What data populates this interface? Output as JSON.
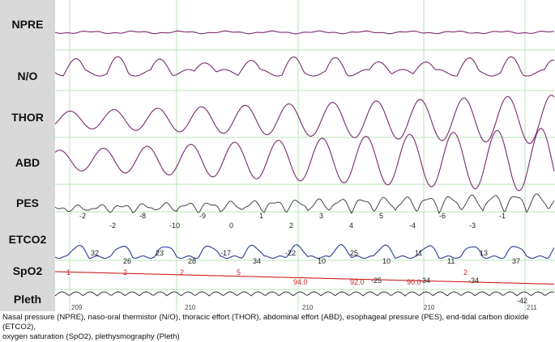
{
  "channels": [
    {
      "label": "NPRE"
    },
    {
      "label": "N/O"
    },
    {
      "label": "THOR"
    },
    {
      "label": "ABD"
    },
    {
      "label": "PES"
    },
    {
      "label": "ETCO2"
    },
    {
      "label": "SpO2"
    },
    {
      "label": "Pleth"
    }
  ],
  "pes_values": [
    "-2",
    "-2",
    "-8",
    "-10",
    "-9",
    "0",
    "1",
    "2",
    "3",
    "4",
    "5",
    "-4",
    "-6",
    "-3",
    "-1"
  ],
  "etco2_values": [
    "32",
    "26",
    "23",
    "28",
    "-17",
    "34",
    "-22",
    "10",
    "25",
    "10",
    "11",
    "11",
    "13",
    "37"
  ],
  "pes_lower_values": [
    "-25",
    "-34",
    "-34",
    "-42"
  ],
  "spo2_values": [
    "1",
    "2",
    "2",
    "5",
    "94.0",
    "92.0",
    "90.0",
    "2"
  ],
  "time_ticks": [
    "209",
    "210",
    "210",
    "210",
    "211"
  ],
  "caption": {
    "line1": "Nasal pressure (NPRE), naso-oral thermistor (N/O), thoracic effort (THOR), abdominal effort (ABD), esophageal pressure (PES), end-tidal carbon dioxide (ETCO2),",
    "line2": "oxygen saturation (SpO2), plethysmography (Pleth)"
  },
  "colors": {
    "flow_trace": "#7a2a6e",
    "pes_trace": "#333333",
    "etco2_trace": "#2a3a9a",
    "spo2_trace": "#cc2222",
    "grid": "#b9e3b9",
    "label_bg": "#d9d9d9"
  }
}
